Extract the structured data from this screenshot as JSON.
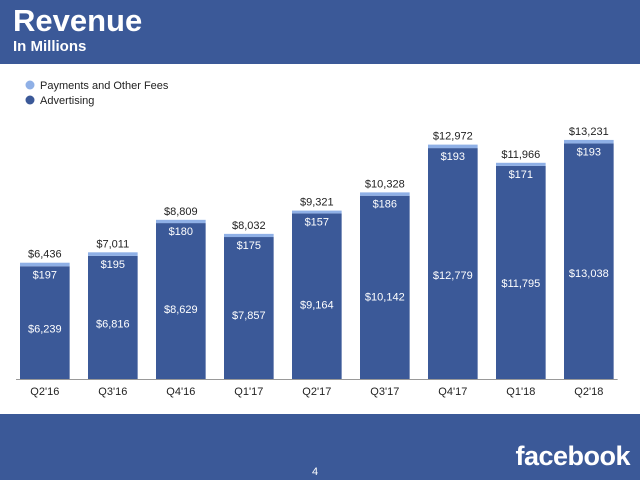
{
  "header": {
    "title": "Revenue",
    "subtitle": "In Millions"
  },
  "footer": {
    "page_number": "4",
    "logo_text": "facebook"
  },
  "colors": {
    "brand_blue": "#3b5998",
    "advertising": "#3b5998",
    "payments": "#8fb0e6"
  },
  "chart_data": {
    "type": "bar",
    "stacked": true,
    "categories": [
      "Q2'16",
      "Q3'16",
      "Q4'16",
      "Q1'17",
      "Q2'17",
      "Q3'17",
      "Q4'17",
      "Q1'18",
      "Q2'18"
    ],
    "series": [
      {
        "name": "Advertising",
        "values": [
          6239,
          6816,
          8629,
          7857,
          9164,
          10142,
          12779,
          11795,
          13038
        ],
        "labels": [
          "$6,239",
          "$6,816",
          "$8,629",
          "$7,857",
          "$9,164",
          "$10,142",
          "$12,779",
          "$11,795",
          "$13,038"
        ]
      },
      {
        "name": "Payments and Other Fees",
        "values": [
          197,
          195,
          180,
          175,
          157,
          186,
          193,
          171,
          193
        ],
        "labels": [
          "$197",
          "$195",
          "$180",
          "$175",
          "$157",
          "$186",
          "$193",
          "$171",
          "$193"
        ]
      }
    ],
    "totals": [
      6436,
      7011,
      8809,
      8032,
      9321,
      10328,
      12972,
      11966,
      13231
    ],
    "total_labels": [
      "$6,436",
      "$7,011",
      "$8,809",
      "$8,032",
      "$9,321",
      "$10,328",
      "$12,972",
      "$11,966",
      "$13,231"
    ],
    "ylim": [
      0,
      14500
    ],
    "legend_position": "top-left",
    "legend": [
      "Payments and Other Fees",
      "Advertising"
    ],
    "grid": false
  }
}
